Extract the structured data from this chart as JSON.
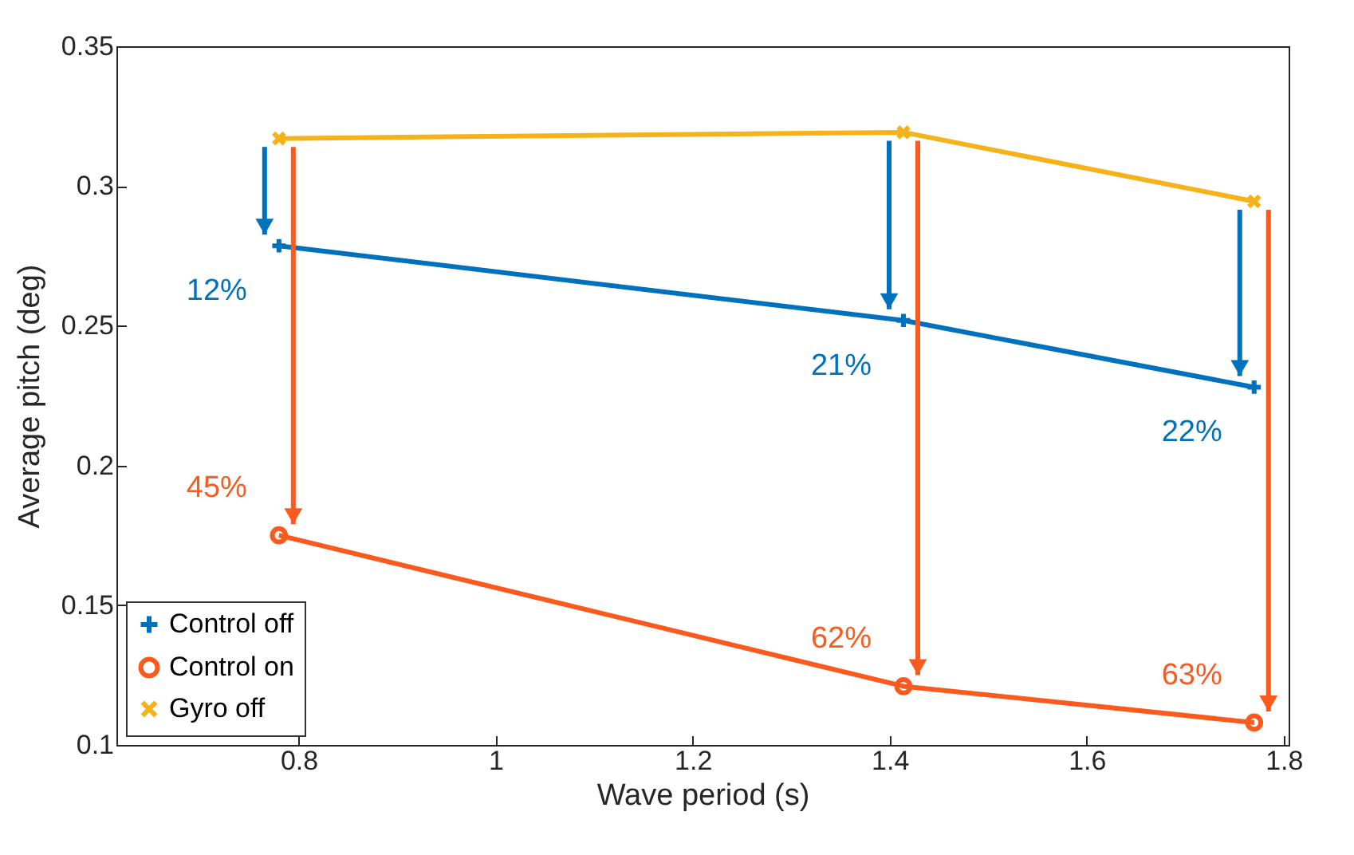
{
  "chart_data": {
    "type": "line",
    "xlabel": "Wave period (s)",
    "ylabel": "Average pitch (deg)",
    "x": [
      0.78,
      1.414,
      1.77
    ],
    "series": [
      {
        "name": "Control off",
        "color": "#0072bd",
        "marker": "cross",
        "values": [
          0.2786,
          0.2519,
          0.228
        ]
      },
      {
        "name": "Control on",
        "color": "#fa5a1e",
        "marker": "circle",
        "values": [
          0.175,
          0.121,
          0.108
        ]
      },
      {
        "name": "Gyro off",
        "color": "#f5b21b",
        "marker": "x",
        "values": [
          0.317,
          0.3192,
          0.2945
        ]
      }
    ],
    "annotations": [
      {
        "text": "12%",
        "x": 0.78,
        "y": 0.2786
      },
      {
        "text": "21%",
        "x": 1.414,
        "y": 0.2519
      },
      {
        "text": "22%",
        "x": 1.77,
        "y": 0.228
      },
      {
        "text": "45%",
        "x": 0.78,
        "y": 0.175
      },
      {
        "text": "62%",
        "x": 1.414,
        "y": 0.121
      },
      {
        "text": "63%",
        "x": 1.77,
        "y": 0.108
      }
    ],
    "xlim": [
      0.615,
      1.805
    ],
    "xticks": [
      0.8,
      1,
      1.2,
      1.4,
      1.6,
      1.8
    ],
    "ylim": [
      0.1,
      0.35
    ],
    "yticks": [
      0.1,
      0.15,
      0.2,
      0.25,
      0.3,
      0.35
    ],
    "grid": false,
    "legend": "bottom left"
  }
}
